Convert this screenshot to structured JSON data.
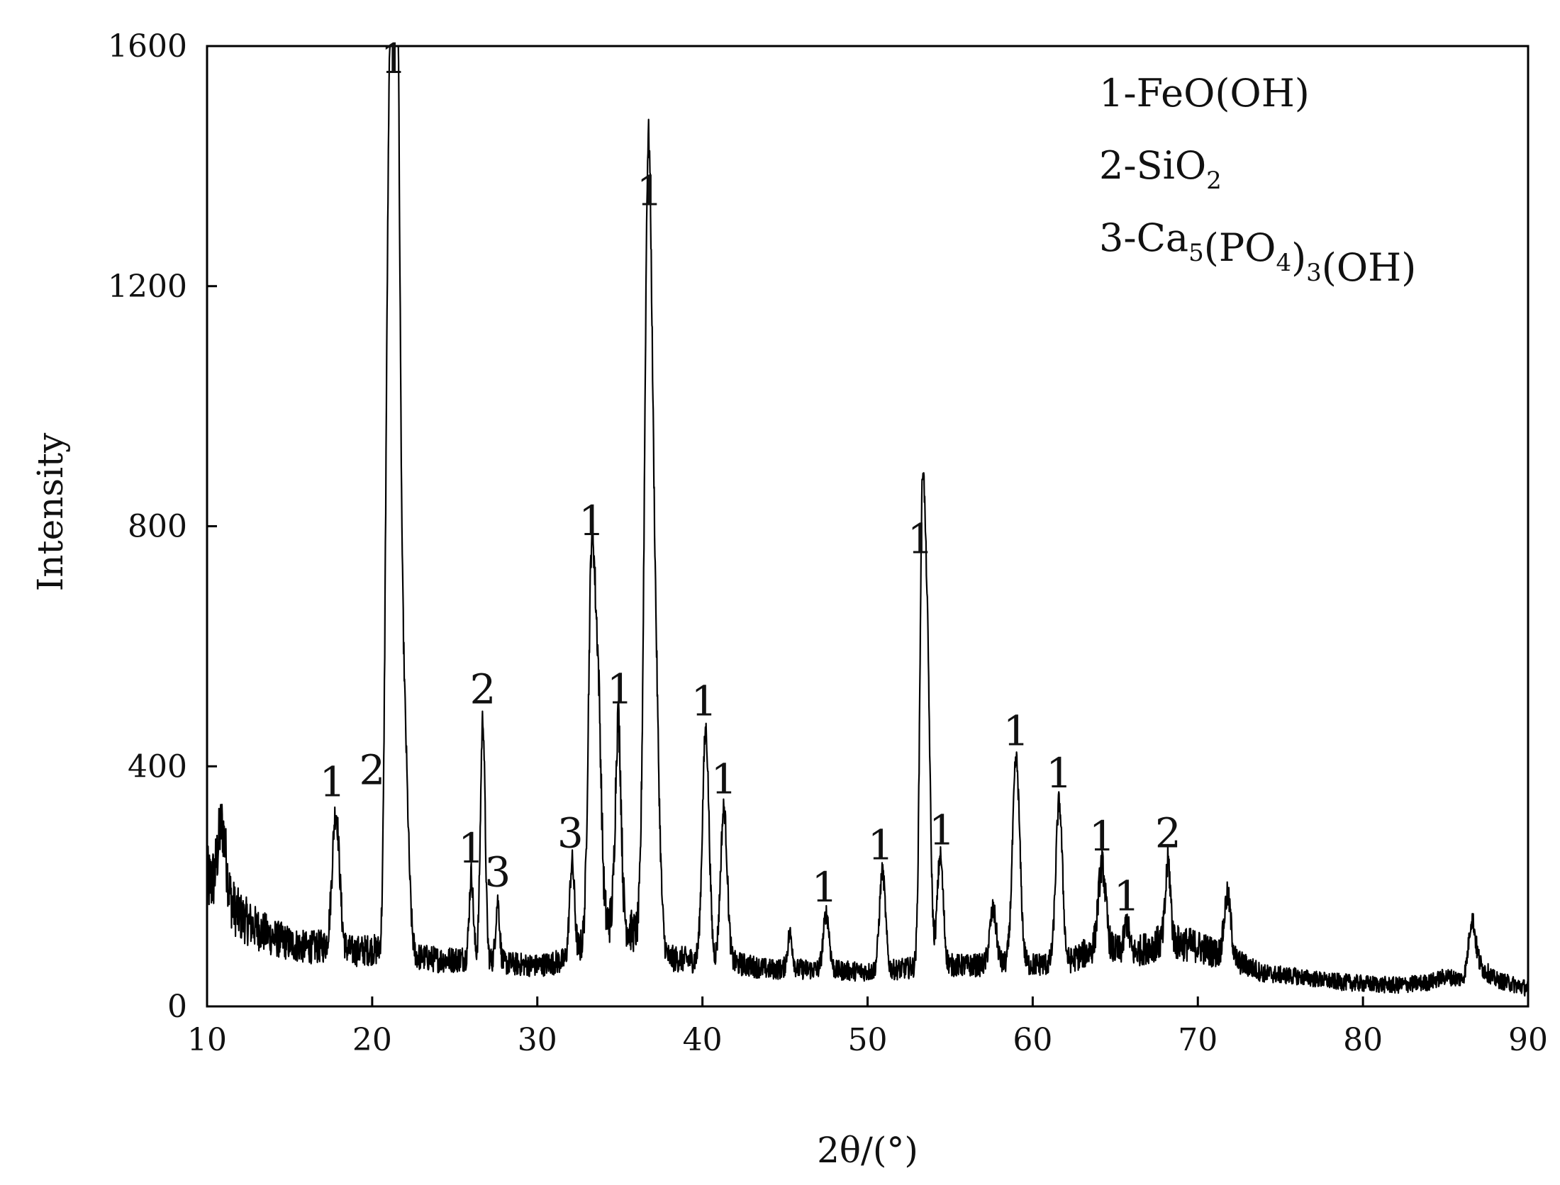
{
  "chart_data": {
    "type": "line",
    "title": "",
    "xlabel": "2θ/(°)",
    "ylabel": "Intensity",
    "xlim": [
      10,
      90
    ],
    "ylim": [
      0,
      1600
    ],
    "x_ticks": [
      "10",
      "20",
      "30",
      "40",
      "50",
      "60",
      "70",
      "80",
      "90"
    ],
    "y_ticks": [
      "0",
      "400",
      "800",
      "1200",
      "1600"
    ],
    "grid": false,
    "legend_position": "top-right",
    "legend": [
      {
        "prefix": "1-",
        "parts": [
          {
            "t": "FeO(OH)",
            "sub": false
          }
        ]
      },
      {
        "prefix": "2-",
        "parts": [
          {
            "t": "SiO",
            "sub": false
          },
          {
            "t": "2",
            "sub": true
          }
        ]
      },
      {
        "prefix": "3-",
        "parts": [
          {
            "t": "Ca",
            "sub": false
          },
          {
            "t": "5",
            "sub": true
          },
          {
            "t": "(PO",
            "sub": false
          },
          {
            "t": "4",
            "sub": true
          },
          {
            "t": ")",
            "sub": false
          },
          {
            "t": "3",
            "sub": true
          },
          {
            "t": "(OH)",
            "sub": false
          }
        ]
      }
    ],
    "baseline": [
      [
        10,
        210
      ],
      [
        11,
        185
      ],
      [
        12,
        150
      ],
      [
        13,
        130
      ],
      [
        14,
        115
      ],
      [
        15,
        105
      ],
      [
        16,
        98
      ],
      [
        17,
        100
      ],
      [
        19,
        92
      ],
      [
        20,
        95
      ],
      [
        22,
        85
      ],
      [
        24,
        78
      ],
      [
        25,
        78
      ],
      [
        26,
        82
      ],
      [
        28,
        72
      ],
      [
        30,
        68
      ],
      [
        32,
        78
      ],
      [
        33,
        110
      ],
      [
        34,
        140
      ],
      [
        35,
        140
      ],
      [
        36,
        120
      ],
      [
        38,
        80
      ],
      [
        39,
        78
      ],
      [
        42,
        72
      ],
      [
        44,
        62
      ],
      [
        46,
        62
      ],
      [
        48,
        60
      ],
      [
        50,
        58
      ],
      [
        52,
        62
      ],
      [
        54,
        70
      ],
      [
        56,
        68
      ],
      [
        58,
        70
      ],
      [
        60,
        70
      ],
      [
        62,
        72
      ],
      [
        64,
        100
      ],
      [
        66,
        88
      ],
      [
        68,
        110
      ],
      [
        70,
        100
      ],
      [
        72,
        80
      ],
      [
        74,
        55
      ],
      [
        76,
        50
      ],
      [
        78,
        42
      ],
      [
        80,
        38
      ],
      [
        82,
        35
      ],
      [
        84,
        40
      ],
      [
        85,
        50
      ],
      [
        86,
        45
      ],
      [
        87,
        70
      ],
      [
        88,
        45
      ],
      [
        90,
        30
      ]
    ],
    "peaks": [
      {
        "x": 10.9,
        "y": 300,
        "w": 0.25,
        "label": ""
      },
      {
        "x": 17.8,
        "y": 325,
        "w": 0.22,
        "label": "1"
      },
      {
        "x": 20.9,
        "y": 680,
        "w": 0.15,
        "label": ""
      },
      {
        "x": 21.2,
        "y": 1530,
        "w": 0.2,
        "label": "1"
      },
      {
        "x": 21.5,
        "y": 1360,
        "w": 0.18,
        "label": ""
      },
      {
        "x": 21.9,
        "y": 500,
        "w": 0.25,
        "label": ""
      },
      {
        "x": 26.0,
        "y": 220,
        "w": 0.12,
        "label": "1"
      },
      {
        "x": 26.7,
        "y": 480,
        "w": 0.14,
        "label": "2"
      },
      {
        "x": 27.6,
        "y": 175,
        "w": 0.12,
        "label": "3"
      },
      {
        "x": 32.1,
        "y": 240,
        "w": 0.15,
        "label": "3"
      },
      {
        "x": 33.3,
        "y": 760,
        "w": 0.2,
        "label": "1"
      },
      {
        "x": 33.7,
        "y": 480,
        "w": 0.18,
        "label": ""
      },
      {
        "x": 34.9,
        "y": 480,
        "w": 0.17,
        "label": "1"
      },
      {
        "x": 36.7,
        "y": 1300,
        "w": 0.22,
        "label": "1"
      },
      {
        "x": 37.1,
        "y": 580,
        "w": 0.25,
        "label": ""
      },
      {
        "x": 40.2,
        "y": 460,
        "w": 0.2,
        "label": "1"
      },
      {
        "x": 41.3,
        "y": 330,
        "w": 0.2,
        "label": "1"
      },
      {
        "x": 45.3,
        "y": 120,
        "w": 0.15,
        "label": ""
      },
      {
        "x": 47.5,
        "y": 155,
        "w": 0.18,
        "label": "1"
      },
      {
        "x": 50.9,
        "y": 225,
        "w": 0.18,
        "label": "1"
      },
      {
        "x": 53.3,
        "y": 730,
        "w": 0.15,
        "label": "1"
      },
      {
        "x": 53.6,
        "y": 600,
        "w": 0.18,
        "label": ""
      },
      {
        "x": 54.4,
        "y": 250,
        "w": 0.18,
        "label": "1"
      },
      {
        "x": 57.6,
        "y": 160,
        "w": 0.2,
        "label": ""
      },
      {
        "x": 59.0,
        "y": 410,
        "w": 0.22,
        "label": "1"
      },
      {
        "x": 61.6,
        "y": 340,
        "w": 0.2,
        "label": "1"
      },
      {
        "x": 64.2,
        "y": 235,
        "w": 0.22,
        "label": "1"
      },
      {
        "x": 65.7,
        "y": 140,
        "w": 0.15,
        "label": "1"
      },
      {
        "x": 68.2,
        "y": 240,
        "w": 0.15,
        "label": "2"
      },
      {
        "x": 71.8,
        "y": 185,
        "w": 0.2,
        "label": ""
      },
      {
        "x": 86.6,
        "y": 145,
        "w": 0.2,
        "label": ""
      }
    ],
    "peak_labels": [
      {
        "x": 21.3,
        "y": 1555,
        "text": "1"
      },
      {
        "x": 36.8,
        "y": 1335,
        "text": "1"
      },
      {
        "x": 33.3,
        "y": 785,
        "text": "1"
      },
      {
        "x": 53.2,
        "y": 755,
        "text": "1"
      },
      {
        "x": 26.7,
        "y": 505,
        "text": "2"
      },
      {
        "x": 35.0,
        "y": 505,
        "text": "1"
      },
      {
        "x": 40.1,
        "y": 485,
        "text": "1"
      },
      {
        "x": 59.0,
        "y": 435,
        "text": "1"
      },
      {
        "x": 41.3,
        "y": 355,
        "text": "1"
      },
      {
        "x": 61.6,
        "y": 365,
        "text": "1"
      },
      {
        "x": 17.6,
        "y": 350,
        "text": "1"
      },
      {
        "x": 20.0,
        "y": 370,
        "text": "2"
      },
      {
        "x": 26.0,
        "y": 240,
        "text": "1"
      },
      {
        "x": 27.6,
        "y": 200,
        "text": "3"
      },
      {
        "x": 32.0,
        "y": 265,
        "text": "3"
      },
      {
        "x": 50.8,
        "y": 245,
        "text": "1"
      },
      {
        "x": 54.5,
        "y": 270,
        "text": "1"
      },
      {
        "x": 64.2,
        "y": 260,
        "text": "1"
      },
      {
        "x": 68.2,
        "y": 265,
        "text": "2"
      },
      {
        "x": 47.4,
        "y": 175,
        "text": "1"
      },
      {
        "x": 65.7,
        "y": 160,
        "text": "1"
      }
    ]
  }
}
